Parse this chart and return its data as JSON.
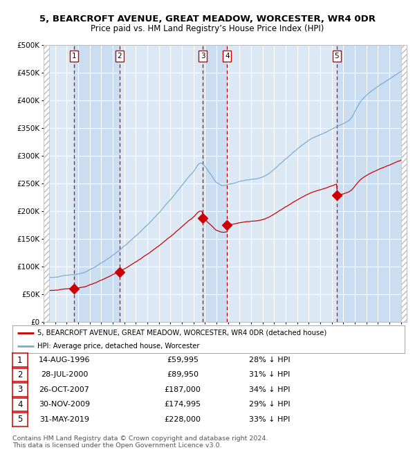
{
  "title1": "5, BEARCROFT AVENUE, GREAT MEADOW, WORCESTER, WR4 0DR",
  "title2": "Price paid vs. HM Land Registry’s House Price Index (HPI)",
  "background_color": "#dce9f5",
  "grid_color": "#ffffff",
  "sale_dates_x": [
    1996.62,
    2000.58,
    2007.81,
    2009.92,
    2019.42
  ],
  "sale_prices": [
    59995,
    89950,
    187000,
    174995,
    228000
  ],
  "sale_labels": [
    "1",
    "2",
    "3",
    "4",
    "5"
  ],
  "sale_date_strs": [
    "14-AUG-1996",
    "28-JUL-2000",
    "26-OCT-2007",
    "30-NOV-2009",
    "31-MAY-2019"
  ],
  "sale_price_strs": [
    "£59,995",
    "£89,950",
    "£187,000",
    "£174,995",
    "£228,000"
  ],
  "sale_hpi_strs": [
    "28% ↓ HPI",
    "31% ↓ HPI",
    "34% ↓ HPI",
    "29% ↓ HPI",
    "33% ↓ HPI"
  ],
  "red_line_color": "#cc0000",
  "blue_line_color": "#7aacd4",
  "marker_color": "#cc0000",
  "vline_color": "#cc0000",
  "highlight_color": "#c8dcf0",
  "ylim": [
    0,
    500000
  ],
  "xlim_start": 1994.0,
  "xlim_end": 2025.5,
  "footer_text1": "Contains HM Land Registry data © Crown copyright and database right 2024.",
  "footer_text2": "This data is licensed under the Open Government Licence v3.0.",
  "legend_line1": "5, BEARCROFT AVENUE, GREAT MEADOW, WORCESTER, WR4 0DR (detached house)",
  "legend_line2": "HPI: Average price, detached house, Worcester"
}
